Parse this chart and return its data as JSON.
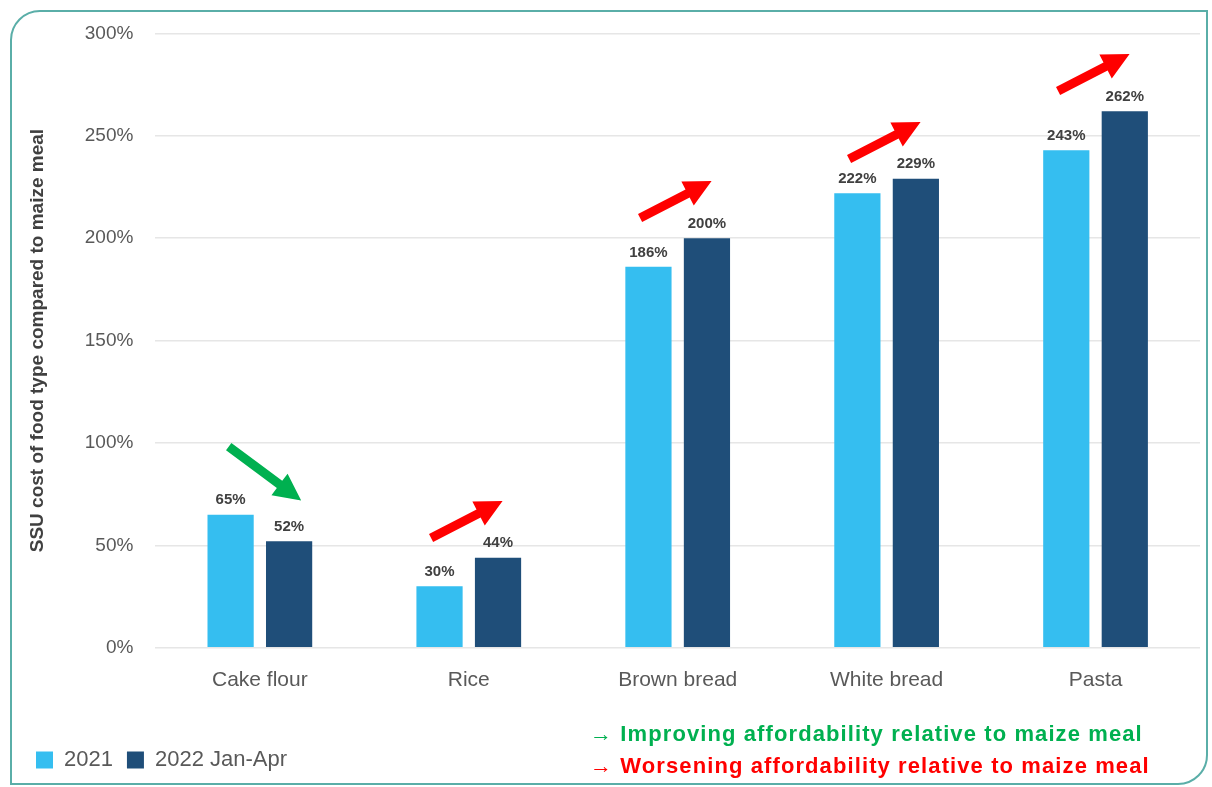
{
  "chart_data": {
    "type": "bar",
    "ylabel": "SSU cost of food type compared to maize meal",
    "categories": [
      "Cake flour",
      "Rice",
      "Brown bread",
      "White bread",
      "Pasta"
    ],
    "series": [
      {
        "name": "2021",
        "color": "#35bef0",
        "values": [
          65,
          30,
          186,
          222,
          243
        ],
        "value_labels": [
          "65%",
          "30%",
          "186%",
          "222%",
          "243%"
        ]
      },
      {
        "name": "2022 Jan-Apr",
        "color": "#1f4e79",
        "values": [
          52,
          44,
          200,
          229,
          262
        ],
        "value_labels": [
          "52%",
          "44%",
          "200%",
          "229%",
          "262%"
        ]
      }
    ],
    "ylim": [
      0,
      300
    ],
    "yticks": [
      {
        "value": 0,
        "label": "0%"
      },
      {
        "value": 50,
        "label": "50%"
      },
      {
        "value": 100,
        "label": "100%"
      },
      {
        "value": 150,
        "label": "150%"
      },
      {
        "value": 200,
        "label": "200%"
      },
      {
        "value": 250,
        "label": "250%"
      },
      {
        "value": 300,
        "label": "300%"
      }
    ],
    "grid": "y",
    "legend": "bottom left",
    "annotations": [
      "→ Improving affordability relative to maize meal",
      "→ Worsening affordability relative to maize meal"
    ]
  }
}
